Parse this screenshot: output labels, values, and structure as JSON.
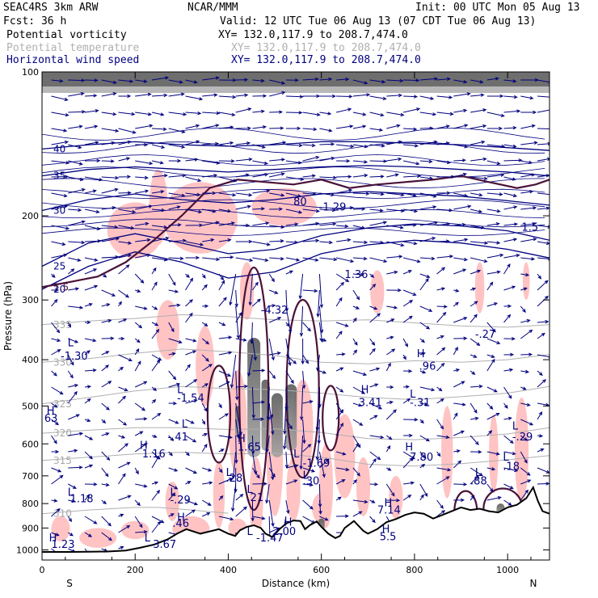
{
  "header": {
    "model": "SEAC4RS   3km ARW",
    "org": "NCAR/MMM",
    "init": "Init: 00 UTC Mon 05 Aug 13",
    "fcst": "Fcst:   36 h",
    "valid": "Valid: 12 UTC Tue 06 Aug 13 (07 CDT Tue 06 Aug 13)",
    "fields": [
      {
        "name": "Potential vorticity",
        "xy": "XY= 132.0,117.9 to 208.7,474.0",
        "style": "normal"
      },
      {
        "name": "Potential temperature",
        "xy": "XY= 132.0,117.9 to 208.7,474.0",
        "style": "faded"
      },
      {
        "name": "Horizontal wind speed",
        "xy": "XY= 132.0,117.9 to 208.7,474.0",
        "style": "blue"
      }
    ]
  },
  "colors": {
    "pv_shading": "#ffc0c0",
    "pv_contour": "#4a1238",
    "theta_contour": "#b0b0b0",
    "wind_vector": "#00007f",
    "terrain": "#000000",
    "strong_pv": "#404040"
  },
  "chart_data": {
    "type": "cross-section",
    "xlabel": "Distance (km)",
    "ylabel": "Pressure (hPa)",
    "xlim": [
      0,
      1090
    ],
    "ylim": [
      1050,
      100
    ],
    "y_scale": "log",
    "x_ticks": [
      0,
      200,
      400,
      600,
      800,
      1000
    ],
    "y_ticks": [
      100,
      200,
      300,
      400,
      500,
      600,
      700,
      800,
      900,
      1000
    ],
    "x_endpoint_labels": {
      "left": "S",
      "right": "N"
    },
    "terrain": {
      "x": [
        0,
        30,
        60,
        100,
        140,
        180,
        210,
        240,
        270,
        290,
        310,
        340,
        360,
        380,
        400,
        415,
        425,
        440,
        455,
        470,
        480,
        495,
        510,
        525,
        540,
        555,
        565,
        575,
        590,
        600,
        615,
        630,
        640,
        650,
        670,
        690,
        700,
        720,
        740,
        760,
        780,
        800,
        820,
        840,
        860,
        880,
        900,
        920,
        940,
        960,
        980,
        1000,
        1020,
        1040,
        1055,
        1065,
        1075,
        1090
      ],
      "p": [
        1010,
        1010,
        1010,
        1009,
        1008,
        1003,
        990,
        975,
        950,
        925,
        905,
        925,
        915,
        905,
        925,
        935,
        910,
        895,
        888,
        900,
        925,
        940,
        905,
        880,
        868,
        870,
        905,
        888,
        872,
        895,
        925,
        945,
        935,
        900,
        870,
        912,
        925,
        905,
        875,
        862,
        845,
        835,
        840,
        860,
        845,
        830,
        815,
        825,
        820,
        830,
        835,
        815,
        805,
        780,
        740,
        790,
        830,
        840
      ]
    },
    "series": [
      {
        "name": "Potential temperature",
        "contours": [
          {
            "label": "335",
            "x": [
              0,
              100,
              200,
              300,
              400,
              500,
              600,
              700,
              800,
              900,
              1000,
              1090
            ],
            "p": [
              338,
              332,
              328,
              322,
              325,
              330,
              332,
              330,
              335,
              340,
              342,
              338
            ]
          },
          {
            "label": "330",
            "x": [
              0,
              100,
              200,
              300,
              400,
              500,
              600,
              700,
              800,
              900,
              1000,
              1090
            ],
            "p": [
              405,
              398,
              388,
              380,
              385,
              392,
              405,
              408,
              402,
              405,
              400,
              390
            ]
          },
          {
            "label": "325",
            "x": [
              0,
              100,
              200,
              300,
              400,
              500,
              600,
              700,
              800,
              900,
              1000,
              1090
            ],
            "p": [
              495,
              480,
              465,
              455,
              460,
              462,
              470,
              480,
              485,
              478,
              470,
              455
            ]
          },
          {
            "label": "320",
            "x": [
              0,
              100,
              200,
              300,
              400,
              500,
              600,
              700,
              800,
              900,
              1000,
              1090
            ],
            "p": [
              570,
              562,
              555,
              555,
              560,
              558,
              568,
              585,
              588,
              582,
              572,
              555
            ]
          },
          {
            "label": "315",
            "x": [
              0,
              100,
              200,
              300,
              400,
              500,
              600,
              700,
              800,
              900,
              1000,
              1090
            ],
            "p": [
              650,
              640,
              630,
              625,
              630,
              628,
              640,
              662,
              668,
              660,
              648,
              635
            ]
          },
          {
            "label": "310",
            "x": [
              0,
              100,
              200,
              250,
              300,
              350,
              400
            ],
            "p": [
              840,
              825,
              815,
              815,
              822,
              830,
              838
            ]
          }
        ]
      },
      {
        "name": "Horizontal wind speed",
        "contours": [
          {
            "label": "20",
            "x": [
              0,
              100,
              200,
              300,
              400,
              500,
              600,
              700,
              800,
              900,
              1000,
              1090
            ],
            "p": [
              285,
              255,
              238,
              250,
              270,
              262,
              240,
              230,
              225,
              228,
              235,
              245
            ]
          },
          {
            "label": "25",
            "x": [
              0,
              100,
              200,
              300,
              400,
              500,
              600,
              700,
              800,
              900,
              1000,
              1090
            ],
            "p": [
              255,
              228,
              218,
              228,
              240,
              235,
              220,
              212,
              208,
              210,
              215,
              225
            ]
          },
          {
            "label": "30",
            "x": [
              0,
              100,
              200,
              300,
              400,
              500,
              600,
              700,
              800,
              900,
              1000,
              1090
            ],
            "p": [
              195,
              185,
              180,
              185,
              188,
              185,
              180,
              178,
              180,
              182,
              186,
              190
            ]
          },
          {
            "label": "35",
            "x": [
              0,
              100,
              200,
              300,
              400,
              500,
              600,
              700,
              800,
              900,
              1000,
              1090
            ],
            "p": [
              165,
              160,
              158,
              160,
              162,
              160,
              158,
              157,
              158,
              160,
              162,
              165
            ]
          },
          {
            "label": "40",
            "x": [
              0,
              100,
              200,
              300,
              400,
              500,
              600,
              700,
              800,
              900,
              1000,
              1090
            ],
            "p": [
              145,
              142,
              140,
              142,
              143,
              142,
              140,
              140,
              141,
              142,
              144,
              146
            ]
          }
        ]
      },
      {
        "name": "Potential vorticity",
        "contours": [
          {
            "label": "1.5",
            "x": [
              0,
              60,
              120,
              180,
              240,
              300,
              360,
              420,
              480,
              540,
              600,
              660,
              720,
              780,
              840,
              900,
              960,
              1020,
              1060,
              1090
            ],
            "p": [
              282,
              275,
              268,
              250,
              225,
              200,
              175,
              168,
              170,
              172,
              168,
              175,
              172,
              170,
              168,
              165,
              170,
              175,
              172,
              168
            ]
          }
        ]
      }
    ],
    "annotations": [
      {
        "text": "L",
        "x": 55,
        "p": 375
      },
      {
        "text": "-1.30",
        "x": 40,
        "p": 400
      },
      {
        "text": "H",
        "x": 10,
        "p": 520
      },
      {
        "text": "63",
        "x": 5,
        "p": 540
      },
      {
        "text": "L",
        "x": 290,
        "p": 470
      },
      {
        "text": "-1.54",
        "x": 290,
        "p": 490
      },
      {
        "text": "L",
        "x": 300,
        "p": 555
      },
      {
        "text": "-.41",
        "x": 270,
        "p": 590
      },
      {
        "text": "H",
        "x": 210,
        "p": 615
      },
      {
        "text": "1.16",
        "x": 215,
        "p": 640
      },
      {
        "text": "H",
        "x": 420,
        "p": 595
      },
      {
        "text": "1.65",
        "x": 420,
        "p": 620
      },
      {
        "text": "L",
        "x": 395,
        "p": 700
      },
      {
        "text": ".28",
        "x": 395,
        "p": 720
      },
      {
        "text": "L",
        "x": 55,
        "p": 770
      },
      {
        "text": "1.18",
        "x": 60,
        "p": 795
      },
      {
        "text": "L",
        "x": 275,
        "p": 770
      },
      {
        "text": "-.29",
        "x": 275,
        "p": 800
      },
      {
        "text": "L",
        "x": 440,
        "p": 760
      },
      {
        "text": ".21",
        "x": 440,
        "p": 790
      },
      {
        "text": "H",
        "x": 685,
        "p": 470
      },
      {
        "text": "3.41",
        "x": 680,
        "p": 500
      },
      {
        "text": "L",
        "x": 790,
        "p": 480
      },
      {
        "text": "-.31",
        "x": 790,
        "p": 500
      },
      {
        "text": "H",
        "x": 805,
        "p": 395
      },
      {
        "text": ".96",
        "x": 810,
        "p": 420
      },
      {
        "text": "-.27",
        "x": 930,
        "p": 360
      },
      {
        "text": "H",
        "x": 780,
        "p": 620
      },
      {
        "text": "7.80",
        "x": 790,
        "p": 650
      },
      {
        "text": "L",
        "x": 540,
        "p": 640
      },
      {
        "text": "-1.69",
        "x": 560,
        "p": 670
      },
      {
        "text": "L",
        "x": 560,
        "p": 710
      },
      {
        "text": ".30",
        "x": 560,
        "p": 730
      },
      {
        "text": "L",
        "x": 930,
        "p": 700
      },
      {
        "text": ".88",
        "x": 920,
        "p": 730
      },
      {
        "text": "L",
        "x": 990,
        "p": 650
      },
      {
        "text": ".18",
        "x": 990,
        "p": 680
      },
      {
        "text": "L",
        "x": 1010,
        "p": 560
      },
      {
        "text": "-.29",
        "x": 1010,
        "p": 590
      },
      {
        "text": "H",
        "x": 735,
        "p": 810
      },
      {
        "text": "7.14",
        "x": 720,
        "p": 840
      },
      {
        "text": "H",
        "x": 290,
        "p": 870
      },
      {
        "text": ".46",
        "x": 280,
        "p": 895
      },
      {
        "text": "H",
        "x": 520,
        "p": 890
      },
      {
        "text": "2.00",
        "x": 495,
        "p": 930
      },
      {
        "text": "H",
        "x": 730,
        "p": 920
      },
      {
        "text": "5.5",
        "x": 725,
        "p": 955
      },
      {
        "text": "L",
        "x": 440,
        "p": 930
      },
      {
        "text": "-1.47",
        "x": 460,
        "p": 960
      },
      {
        "text": "-4.32",
        "x": 470,
        "p": 320
      },
      {
        "text": "H",
        "x": 15,
        "p": 960
      },
      {
        "text": "1.23",
        "x": 20,
        "p": 990
      },
      {
        "text": "L",
        "x": 220,
        "p": 960
      },
      {
        "text": "-3.67",
        "x": 230,
        "p": 990
      },
      {
        "text": "80",
        "x": 540,
        "p": 190
      },
      {
        "text": "-1.29",
        "x": 595,
        "p": 195
      },
      {
        "text": "1.36",
        "x": 650,
        "p": 270
      },
      {
        "text": "1.5",
        "x": 1030,
        "p": 215
      }
    ]
  }
}
